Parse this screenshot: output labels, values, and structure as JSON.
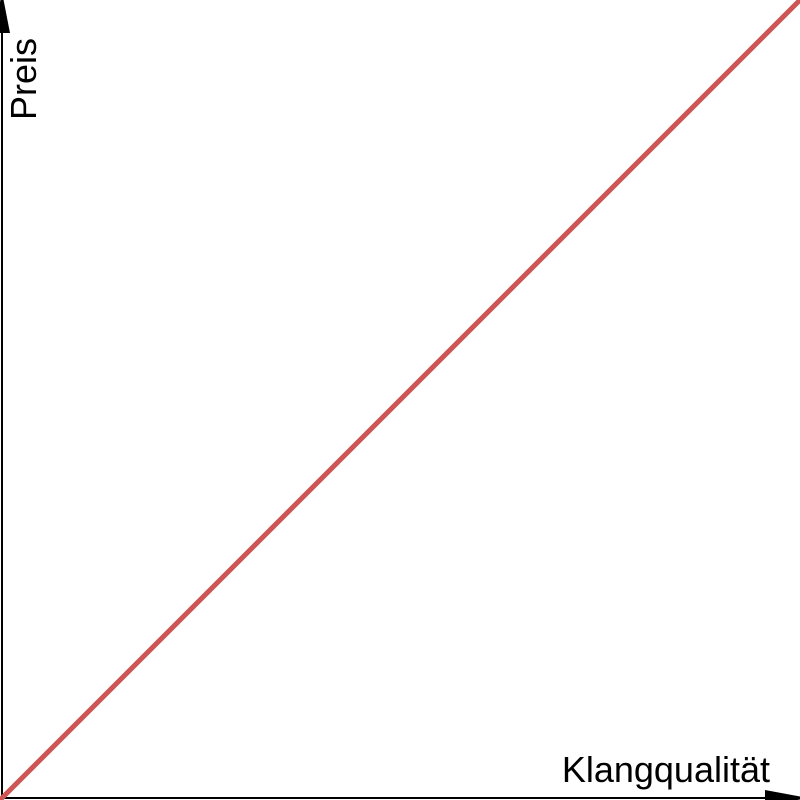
{
  "chart_data": {
    "type": "line",
    "title": "",
    "xlabel": "Klangqualität",
    "ylabel": "Preis",
    "xlim": [
      0,
      1
    ],
    "ylim": [
      0,
      1
    ],
    "grid": false,
    "ticks": false,
    "series": [
      {
        "x": [
          0,
          1
        ],
        "y": [
          0,
          1
        ],
        "color": "#cd5553"
      }
    ]
  },
  "colors": {
    "axis": "#000000",
    "line": "#cd5553"
  }
}
